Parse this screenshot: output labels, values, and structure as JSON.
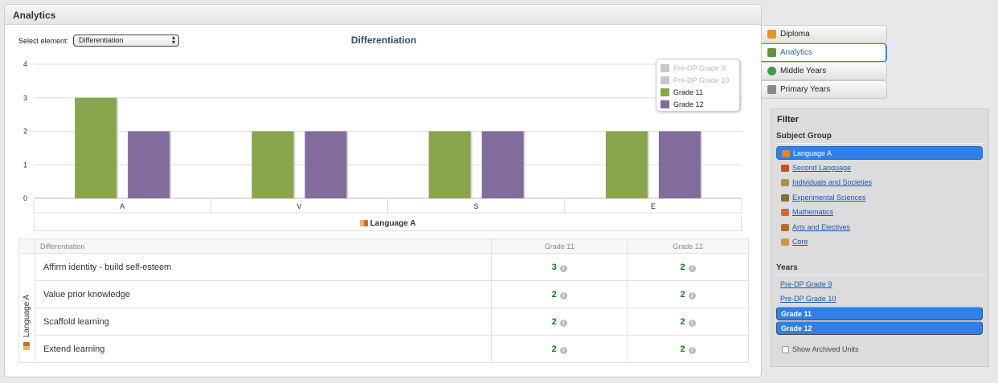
{
  "panel": {
    "title": "Analytics"
  },
  "selector": {
    "label": "Select element:",
    "value": "Differentiation"
  },
  "chart_data": {
    "type": "bar",
    "title": "Differentiation",
    "categories": [
      "A",
      "V",
      "S",
      "E"
    ],
    "group_label": "Language A",
    "ylim": [
      0,
      4
    ],
    "yticks": [
      0,
      1,
      2,
      3,
      4
    ],
    "series": [
      {
        "name": "Pre-DP Grade 9",
        "values": [
          0,
          0,
          0,
          0
        ],
        "color": "#c9c9c9",
        "hidden": true
      },
      {
        "name": "Pre-DP Grade 10",
        "values": [
          0,
          0,
          0,
          0
        ],
        "color": "#c9c9c9",
        "hidden": true
      },
      {
        "name": "Grade 11",
        "values": [
          3,
          2,
          2,
          2
        ],
        "color": "#87a54b",
        "hidden": false
      },
      {
        "name": "Grade 12",
        "values": [
          2,
          2,
          2,
          2
        ],
        "color": "#826c9c",
        "hidden": false
      }
    ],
    "grid": true,
    "legend": "top-right"
  },
  "table": {
    "group": "Language A",
    "headers": [
      "Differentiation",
      "Grade 11",
      "Grade 12"
    ],
    "info_symbol": "i",
    "rows": [
      {
        "label": "Affirm identity - build self-esteem",
        "g11": "3",
        "g12": "2"
      },
      {
        "label": "Value prior knowledge",
        "g11": "2",
        "g12": "2"
      },
      {
        "label": "Scaffold learning",
        "g11": "2",
        "g12": "2"
      },
      {
        "label": "Extend learning",
        "g11": "2",
        "g12": "2"
      }
    ]
  },
  "tabs": [
    {
      "label": "Diploma",
      "icon": "diploma-icon",
      "active": false
    },
    {
      "label": "Analytics",
      "icon": "analytics-icon",
      "active": true
    },
    {
      "label": "Middle Years",
      "icon": "globe-icon",
      "active": false
    },
    {
      "label": "Primary Years",
      "icon": "person-icon",
      "active": false
    }
  ],
  "filter": {
    "title": "Filter",
    "subject_group_label": "Subject Group",
    "subject_groups": [
      {
        "label": "Language A",
        "selected": true,
        "icon": "book-icon",
        "color": "#d9873a"
      },
      {
        "label": "Second Language",
        "selected": false,
        "icon": "flags-icon",
        "color": "#d04a2a"
      },
      {
        "label": "Individuals and Societies",
        "selected": false,
        "icon": "globe-icon",
        "color": "#b58a4a"
      },
      {
        "label": "Experimental Sciences",
        "selected": false,
        "icon": "microscope-icon",
        "color": "#8a6a3a"
      },
      {
        "label": "Mathematics",
        "selected": false,
        "icon": "ruler-icon",
        "color": "#c96a3a"
      },
      {
        "label": "Arts and Electives",
        "selected": false,
        "icon": "palette-icon",
        "color": "#b86a2a"
      },
      {
        "label": "Core",
        "selected": false,
        "icon": "figure-icon",
        "color": "#c99a4a"
      }
    ],
    "years_label": "Years",
    "years": [
      {
        "label": "Pre-DP Grade 9",
        "selected": false
      },
      {
        "label": "Pre-DP Grade 10",
        "selected": false
      },
      {
        "label": "Grade 11",
        "selected": true
      },
      {
        "label": "Grade 12",
        "selected": true
      }
    ],
    "archived_label": "Show Archived Units"
  }
}
